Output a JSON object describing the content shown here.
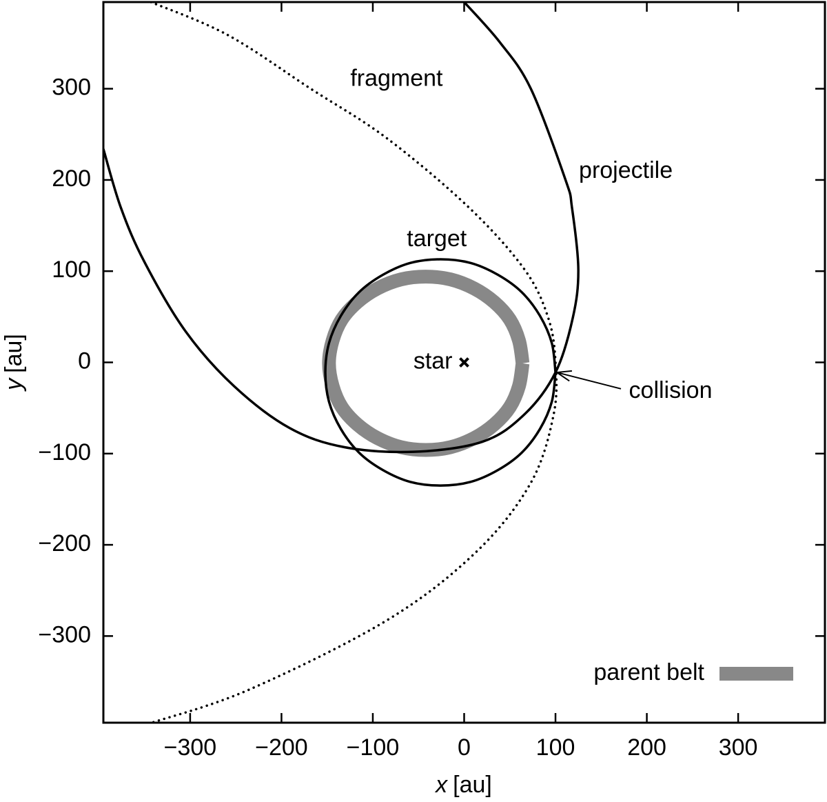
{
  "chart_data": {
    "type": "line",
    "xlabel": {
      "var": "x",
      "unit": "[au]"
    },
    "ylabel": {
      "var": "y",
      "unit": "[au]"
    },
    "xlim": [
      -395,
      395
    ],
    "ylim": [
      -395,
      395
    ],
    "xticks": [
      {
        "value": -300,
        "label": "−300"
      },
      {
        "value": -200,
        "label": "−200"
      },
      {
        "value": -100,
        "label": "−100"
      },
      0,
      100,
      200,
      300
    ],
    "yticks": [
      {
        "value": -300,
        "label": "−300"
      },
      {
        "value": -200,
        "label": "−200"
      },
      {
        "value": -100,
        "label": "−100"
      },
      0,
      100,
      200,
      300
    ],
    "legend": "lower right",
    "series": [
      {
        "name": "parent belt",
        "color": "#888888",
        "style": "thick",
        "x": [
          64,
          60,
          50,
          33,
          11,
          -15,
          -42,
          -69,
          -95,
          -117,
          -134,
          -144,
          -148,
          -144,
          -134,
          -117,
          -95,
          -69,
          -42,
          -15,
          11,
          33,
          50,
          60,
          64
        ],
        "values": [
          -1,
          24,
          47,
          66,
          81,
          91,
          94,
          91,
          81,
          66,
          47,
          24,
          -1,
          -26,
          -49,
          -68,
          -83,
          -93,
          -96,
          -93,
          -83,
          -68,
          -49,
          -26,
          -1
        ]
      },
      {
        "color": "#000000",
        "style": "solid",
        "x": [
          100,
          96,
          83,
          63,
          37,
          7,
          -26,
          -59,
          -89,
          -115,
          -135,
          -148,
          -152,
          -148,
          -135,
          -115,
          -89,
          -59,
          -26,
          7,
          37,
          63,
          83,
          96,
          100
        ],
        "values": [
          -11,
          21,
          51,
          77,
          96,
          109,
          113,
          109,
          96,
          77,
          51,
          21,
          -11,
          -43,
          -73,
          -99,
          -118,
          -131,
          -135,
          -131,
          -118,
          -99,
          -73,
          -43,
          -11
        ]
      },
      {
        "color": "#000000",
        "style": "solid",
        "x": [
          -395,
          -376,
          -350,
          -305,
          -252,
          -191,
          -131,
          -55,
          20,
          66,
          100,
          119,
          125,
          118,
          111,
          73,
          39,
          0
        ],
        "values": [
          234,
          170,
          110,
          34,
          -26,
          -72,
          -93,
          -98,
          -87,
          -57,
          -11,
          49,
          102,
          170,
          200,
          300,
          351,
          395
        ]
      },
      {
        "color": "#000000",
        "style": "dotted",
        "x": [
          -343,
          -259,
          -168,
          -85,
          5,
          66,
          92,
          100,
          98,
          73,
          13,
          -85,
          -236,
          -342
        ],
        "values": [
          395,
          359,
          300,
          246,
          170,
          102,
          49,
          0,
          -57,
          -132,
          -208,
          -283,
          -359,
          -395
        ]
      }
    ],
    "star": {
      "text": "star",
      "x": 0,
      "y": 0
    },
    "annotations": [
      {
        "text": "fragment",
        "x": -74,
        "y": 310
      },
      {
        "text": "projectile",
        "x": 177,
        "y": 209
      },
      {
        "text": "target",
        "x": -30,
        "y": 134
      },
      {
        "text": "collision",
        "x": 226,
        "y": -32,
        "arrow_to": [
          100,
          -11
        ]
      }
    ]
  }
}
